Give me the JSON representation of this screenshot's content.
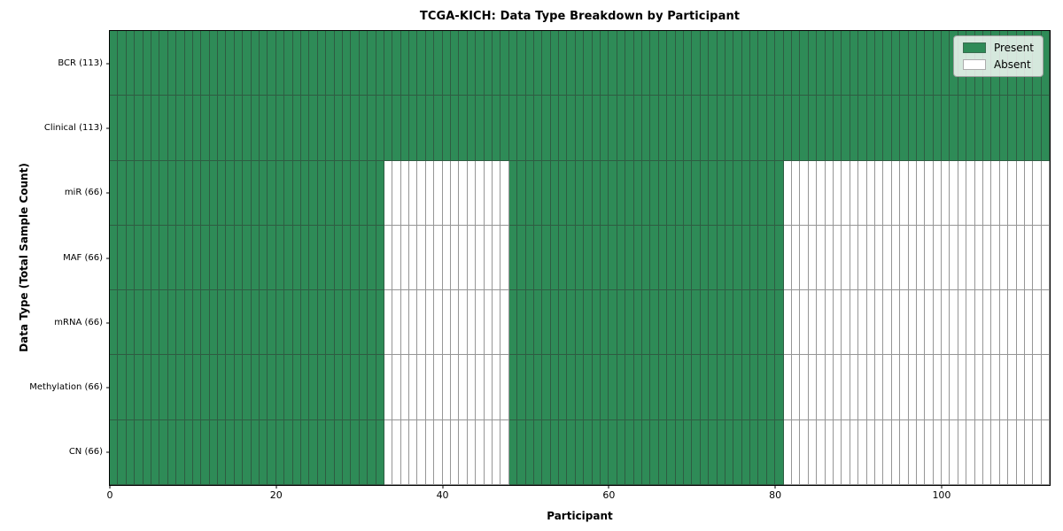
{
  "chart_data": {
    "type": "heatmap",
    "title": "TCGA-KICH: Data Type Breakdown by Participant",
    "xlabel": "Participant",
    "ylabel": "Data Type (Total Sample Count)",
    "n_participants": 113,
    "xlim": [
      0,
      113
    ],
    "x_ticks": [
      0,
      20,
      40,
      60,
      80,
      100
    ],
    "grid": "cell-edges",
    "legend": {
      "position": "upper right",
      "items": [
        {
          "label": "Present",
          "color": "#2e8b57"
        },
        {
          "label": "Absent",
          "color": "#ffffff"
        }
      ]
    },
    "rows": [
      {
        "label": "BCR (113)",
        "data_type": "BCR",
        "total_samples": 113,
        "present_ranges": [
          [
            0,
            113
          ]
        ]
      },
      {
        "label": "Clinical (113)",
        "data_type": "Clinical",
        "total_samples": 113,
        "present_ranges": [
          [
            0,
            113
          ]
        ]
      },
      {
        "label": "miR (66)",
        "data_type": "miR",
        "total_samples": 66,
        "present_ranges": [
          [
            0,
            33
          ],
          [
            48,
            81
          ]
        ]
      },
      {
        "label": "MAF (66)",
        "data_type": "MAF",
        "total_samples": 66,
        "present_ranges": [
          [
            0,
            33
          ],
          [
            48,
            81
          ]
        ]
      },
      {
        "label": "mRNA (66)",
        "data_type": "mRNA",
        "total_samples": 66,
        "present_ranges": [
          [
            0,
            33
          ],
          [
            48,
            81
          ]
        ]
      },
      {
        "label": "Methylation (66)",
        "data_type": "Methylation",
        "total_samples": 66,
        "present_ranges": [
          [
            0,
            33
          ],
          [
            48,
            81
          ]
        ]
      },
      {
        "label": "CN (66)",
        "data_type": "CN",
        "total_samples": 66,
        "present_ranges": [
          [
            0,
            33
          ],
          [
            48,
            81
          ]
        ]
      }
    ],
    "colors": {
      "present": "#2e8b57",
      "absent": "#ffffff",
      "cell_edge": "rgba(45,45,45,0.50)",
      "axis": "#000000"
    }
  }
}
